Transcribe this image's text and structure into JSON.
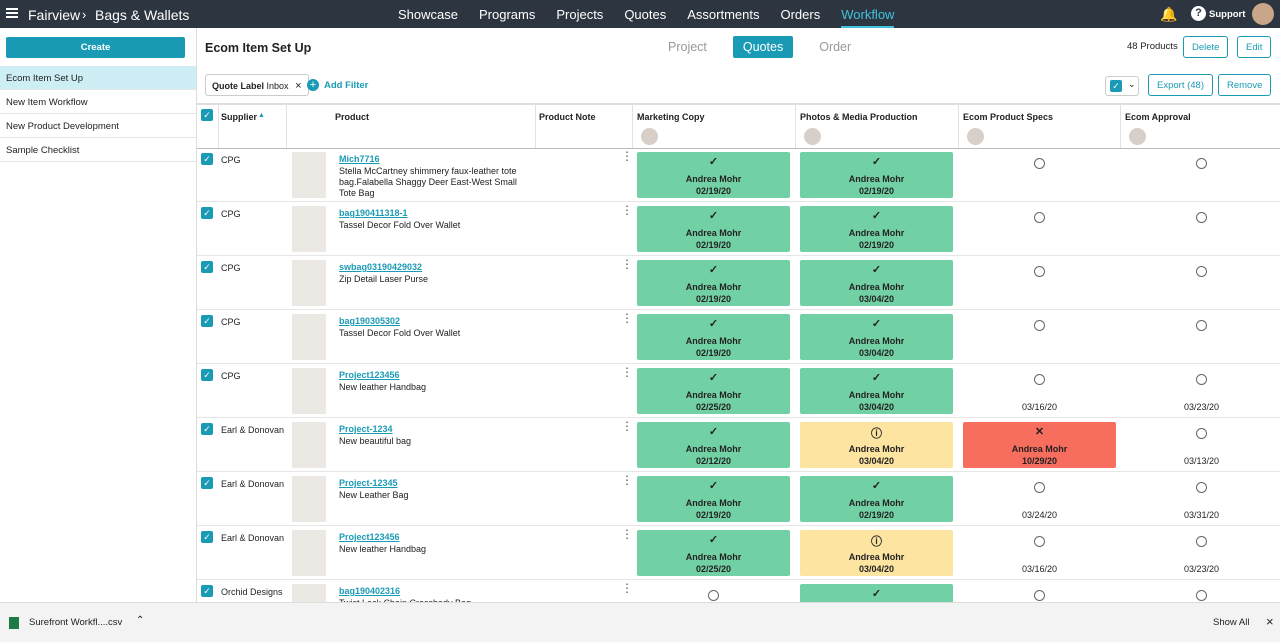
{
  "nav": {
    "brand": "Fairview",
    "breadcrumb": "Bags & Wallets",
    "menu": [
      "Showcase",
      "Programs",
      "Projects",
      "Quotes",
      "Assortments",
      "Orders",
      "Workflow"
    ],
    "active_menu": 6,
    "support": "Support"
  },
  "sidebar": {
    "create": "Create",
    "items": [
      "Ecom Item Set Up",
      "New Item Workflow",
      "New Product Development",
      "Sample Checklist"
    ],
    "active": 0
  },
  "header": {
    "title": "Ecom Item Set Up",
    "tabs": [
      "Project",
      "Quotes",
      "Order"
    ],
    "active_tab": 1,
    "count": "48 Products",
    "buttons": [
      "Delete",
      "Edit"
    ]
  },
  "filter": {
    "chip_label": "Quote Label",
    "chip_value": "Inbox",
    "add": "Add Filter",
    "export": "Export (48)",
    "remove": "Remove"
  },
  "table": {
    "columns": [
      "Supplier",
      "Product",
      "Product Note",
      "Marketing Copy",
      "Photos & Media Production",
      "Ecom Product Specs",
      "Ecom Approval"
    ],
    "rows": [
      {
        "supplier": "CPG",
        "id": "Mich7716",
        "desc": "Stella McCartney shimmery faux-leather tote bag.Falabella Shaggy Deer East-West Small Tote Bag",
        "cells": [
          {
            "status": "done",
            "name": "Andrea Mohr",
            "date": "02/19/20"
          },
          {
            "status": "done",
            "name": "Andrea Mohr",
            "date": "02/19/20"
          },
          {
            "status": "empty"
          },
          {
            "status": "empty"
          }
        ]
      },
      {
        "supplier": "CPG",
        "id": "bag190411318-1",
        "desc": "Tassel Decor Fold Over Wallet",
        "cells": [
          {
            "status": "done",
            "name": "Andrea Mohr",
            "date": "02/19/20"
          },
          {
            "status": "done",
            "name": "Andrea Mohr",
            "date": "02/19/20"
          },
          {
            "status": "empty"
          },
          {
            "status": "empty"
          }
        ]
      },
      {
        "supplier": "CPG",
        "id": "swbag03190429032",
        "desc": "Zip Detail Laser Purse",
        "cells": [
          {
            "status": "done",
            "name": "Andrea Mohr",
            "date": "02/19/20"
          },
          {
            "status": "done",
            "name": "Andrea Mohr",
            "date": "03/04/20"
          },
          {
            "status": "empty"
          },
          {
            "status": "empty"
          }
        ]
      },
      {
        "supplier": "CPG",
        "id": "bag190305302",
        "desc": "Tassel Decor Fold Over Wallet",
        "cells": [
          {
            "status": "done",
            "name": "Andrea Mohr",
            "date": "02/19/20"
          },
          {
            "status": "done",
            "name": "Andrea Mohr",
            "date": "03/04/20"
          },
          {
            "status": "empty"
          },
          {
            "status": "empty"
          }
        ]
      },
      {
        "supplier": "CPG",
        "id": "Project123456",
        "desc": "New leather Handbag",
        "cells": [
          {
            "status": "done",
            "name": "Andrea Mohr",
            "date": "02/25/20"
          },
          {
            "status": "done",
            "name": "Andrea Mohr",
            "date": "03/04/20"
          },
          {
            "status": "empty",
            "date": "03/16/20"
          },
          {
            "status": "empty",
            "date": "03/23/20"
          }
        ]
      },
      {
        "supplier": "Earl & Donovan",
        "id": "Project-1234",
        "desc": "New beautiful bag",
        "cells": [
          {
            "status": "done",
            "name": "Andrea Mohr",
            "date": "02/12/20"
          },
          {
            "status": "warn",
            "name": "Andrea Mohr",
            "date": "03/04/20"
          },
          {
            "status": "fail",
            "name": "Andrea Mohr",
            "date": "10/29/20"
          },
          {
            "status": "empty",
            "date": "03/13/20"
          }
        ]
      },
      {
        "supplier": "Earl & Donovan",
        "id": "Project-12345",
        "desc": "New Leather Bag",
        "cells": [
          {
            "status": "done",
            "name": "Andrea Mohr",
            "date": "02/19/20"
          },
          {
            "status": "done",
            "name": "Andrea Mohr",
            "date": "02/19/20"
          },
          {
            "status": "empty",
            "date": "03/24/20"
          },
          {
            "status": "empty",
            "date": "03/31/20"
          }
        ]
      },
      {
        "supplier": "Earl & Donovan",
        "id": "Project123456",
        "desc": "New leather Handbag",
        "cells": [
          {
            "status": "done",
            "name": "Andrea Mohr",
            "date": "02/25/20"
          },
          {
            "status": "warn",
            "name": "Andrea Mohr",
            "date": "03/04/20"
          },
          {
            "status": "empty",
            "date": "03/16/20"
          },
          {
            "status": "empty",
            "date": "03/23/20"
          }
        ]
      },
      {
        "supplier": "Orchid Designs",
        "id": "bag190402316",
        "desc": "Twist Lock Chain Crossbody Bag",
        "cells": [
          {
            "status": "empty"
          },
          {
            "status": "done"
          },
          {
            "status": "empty"
          },
          {
            "status": "empty"
          }
        ]
      }
    ]
  },
  "download": {
    "file": "Surefront Workfl....csv",
    "show_all": "Show All"
  }
}
